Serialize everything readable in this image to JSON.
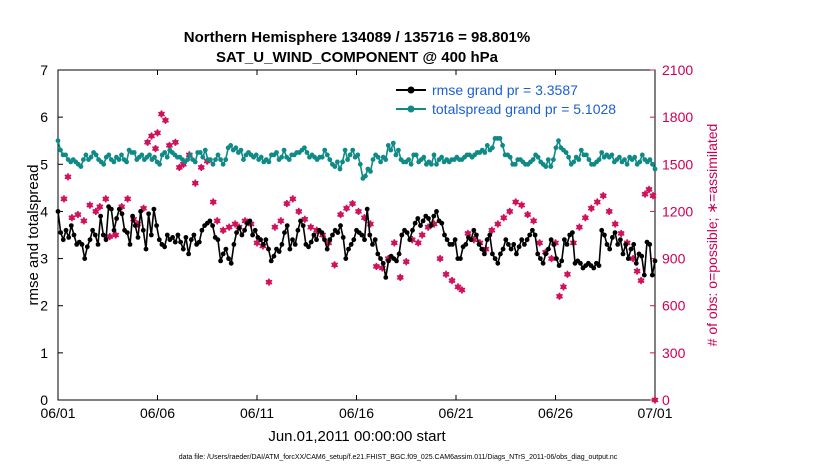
{
  "chart_data": {
    "type": "line",
    "title": "Northern Hemisphere 134089 / 135716 = 98.801%",
    "subtitle": "SAT_U_WIND_COMPONENT @ 400 hPa",
    "xlabel": "Jun.01,2011 00:00:00 start",
    "ylabel": "rmse and totalspread",
    "ylabel_right": "# of obs: o=possible; ∗=assimilated",
    "x_ticks": [
      "06/01",
      "06/06",
      "06/11",
      "06/16",
      "06/21",
      "06/26",
      "07/01"
    ],
    "xlim": [
      0,
      30
    ],
    "ylim": [
      0,
      7
    ],
    "y_ticks": [
      "0",
      "1",
      "2",
      "3",
      "4",
      "5",
      "6",
      "7"
    ],
    "ylim_right": [
      0,
      2100
    ],
    "y_ticks_right": [
      "0",
      "300",
      "600",
      "900",
      "1200",
      "1500",
      "1800",
      "2100"
    ],
    "legend": [
      "rmse grand pr = 3.3587",
      "totalspread grand pr = 5.1028"
    ],
    "footer": "data file: /Users/raeder/DAI/ATM_forcXX/CAM6_setup/f.e21.FHIST_BGC.f09_025.CAM6assim.011/Diags_NTrS_2011-06/obs_diag_output.nc",
    "colors": {
      "rmse": "#000000",
      "spread": "#0f8a87",
      "obs": "#d0105a",
      "legend_text": "#1a5fd6"
    },
    "series": [
      {
        "name": "rmse",
        "values": [
          4.0,
          3.55,
          3.4,
          3.6,
          3.45,
          3.7,
          3.5,
          3.3,
          3.35,
          3.3,
          3.0,
          3.25,
          3.4,
          3.6,
          3.5,
          3.3,
          3.9,
          3.5,
          3.4,
          4.1,
          4.05,
          3.6,
          3.85,
          4.05,
          3.95,
          3.6,
          3.55,
          3.3,
          3.9,
          3.7,
          3.45,
          4.0,
          3.6,
          3.2,
          3.95,
          3.5,
          4.05,
          3.7,
          3.4,
          3.3,
          3.25,
          3.5,
          3.4,
          3.45,
          3.35,
          3.5,
          3.35,
          3.2,
          3.45,
          3.1,
          3.4,
          3.5,
          3.3,
          3.35,
          3.6,
          3.7,
          3.75,
          3.8,
          3.7,
          3.45,
          3.4,
          2.95,
          3.1,
          3.2,
          3.0,
          2.9,
          3.3,
          3.55,
          3.65,
          3.5,
          3.6,
          3.75,
          3.8,
          3.5,
          3.6,
          3.45,
          3.4,
          3.3,
          3.4,
          3.2,
          2.95,
          3.05,
          3.2,
          3.15,
          3.3,
          3.55,
          3.7,
          3.2,
          3.4,
          3.3,
          3.6,
          3.8,
          3.7,
          3.3,
          3.25,
          3.35,
          3.5,
          3.4,
          3.6,
          3.55,
          3.4,
          3.2,
          3.4,
          3.5,
          3.6,
          3.55,
          3.7,
          3.45,
          3.0,
          3.2,
          3.3,
          3.4,
          3.6,
          3.55,
          3.5,
          3.4,
          4.05,
          3.5,
          3.3,
          3.4,
          3.1,
          3.0,
          2.9,
          2.6,
          2.95,
          3.05,
          3.0,
          2.95,
          3.1,
          3.5,
          3.6,
          3.55,
          3.4,
          3.6,
          3.75,
          3.85,
          3.7,
          3.8,
          3.9,
          3.85,
          3.7,
          3.9,
          4.0,
          3.8,
          3.75,
          3.5,
          3.4,
          3.3,
          3.3,
          3.4,
          3.0,
          3.0,
          3.25,
          3.3,
          3.45,
          3.4,
          3.6,
          3.5,
          3.3,
          3.2,
          3.1,
          3.4,
          3.5,
          3.1,
          3.0,
          2.9,
          3.1,
          3.2,
          3.4,
          3.3,
          3.2,
          3.3,
          3.1,
          3.25,
          3.4,
          3.3,
          3.4,
          3.5,
          3.6,
          3.5,
          3.1,
          3.0,
          2.9,
          3.1,
          3.2,
          3.4,
          3.3,
          3.0,
          2.85,
          2.95,
          3.4,
          3.3,
          3.5,
          3.55,
          2.9,
          2.95,
          2.9,
          2.8,
          2.85,
          2.9,
          2.85,
          2.8,
          2.9,
          2.85,
          3.6,
          3.5,
          3.3,
          3.2,
          3.45,
          3.55,
          3.3,
          3.4,
          3.1,
          3.3,
          3.0,
          3.2,
          3.3,
          2.9,
          3.1,
          3.05,
          2.65,
          3.35,
          3.3,
          2.65,
          2.95
        ],
        "x_start": 0,
        "x_end": 30
      },
      {
        "name": "totalspread",
        "values": [
          5.5,
          5.3,
          5.2,
          5.2,
          5.1,
          5.05,
          5.1,
          5.05,
          5.0,
          4.95,
          5.1,
          5.2,
          5.1,
          5.15,
          5.25,
          5.2,
          5.1,
          5.05,
          5.0,
          5.15,
          5.2,
          5.1,
          5.05,
          5.15,
          5.1,
          5.2,
          5.1,
          5.05,
          5.3,
          5.25,
          5.25,
          5.1,
          5.15,
          5.2,
          5.1,
          5.15,
          5.2,
          5.1,
          5.15,
          5.05,
          5.0,
          5.2,
          5.25,
          5.15,
          5.3,
          5.25,
          5.2,
          5.15,
          5.15,
          5.1,
          5.05,
          5.1,
          5.2,
          5.1,
          5.05,
          5.25,
          5.25,
          5.15,
          5.3,
          5.1,
          5.1,
          5.0,
          5.1,
          5.2,
          5.1,
          5.0,
          5.1,
          5.35,
          5.4,
          5.3,
          5.35,
          5.25,
          5.3,
          5.1,
          5.2,
          5.25,
          5.2,
          5.15,
          5.2,
          5.1,
          5.15,
          5.05,
          5.1,
          5.05,
          5.2,
          5.2,
          5.25,
          5.1,
          5.15,
          5.3,
          5.15,
          5.1,
          5.2,
          5.2,
          5.25,
          5.25,
          5.3,
          5.35,
          5.25,
          5.15,
          5.2,
          5.15,
          5.1,
          5.15,
          5.15,
          5.3,
          5.2,
          5.1,
          5.0,
          4.95,
          5.05,
          4.9,
          5.05,
          5.3,
          5.1,
          5.2,
          5.3,
          5.15,
          5.2,
          5.0,
          4.7,
          4.75,
          4.9,
          4.85,
          5.1,
          5.2,
          5.15,
          5.05,
          5.15,
          5.1,
          5.4,
          5.3,
          5.45,
          5.2,
          5.3,
          5.1,
          5.05,
          5.05,
          5.1,
          5.0,
          5.2,
          5.2,
          5.05,
          5.1,
          5.15,
          5.0,
          5.05,
          5.0,
          5.2,
          5.0,
          5.1,
          5.15,
          5.05,
          5.1,
          5.05,
          5.1,
          5.1,
          5.15,
          5.1,
          5.1,
          5.15,
          5.2,
          5.2,
          5.15,
          5.2,
          5.25,
          5.25,
          5.3,
          5.25,
          5.4,
          5.3,
          5.35,
          5.55,
          5.55,
          5.55,
          5.4,
          5.2,
          5.2,
          5.15,
          5.0,
          5.0,
          5.1,
          5.1,
          5.05,
          5.0,
          5.0,
          5.05,
          5.1,
          5.2,
          5.15,
          5.05,
          5.0,
          4.95,
          5.1,
          4.95,
          5.1,
          5.35,
          5.5,
          5.35,
          5.3,
          5.25,
          5.15,
          5.0,
          5.05,
          5.15,
          5.1,
          5.3,
          5.2,
          5.2,
          5.1,
          5.0,
          5.0,
          5.05,
          5.1,
          5.25,
          5.15,
          5.2,
          5.15,
          5.2,
          5.05,
          5.1,
          5.15,
          5.05,
          5.1,
          5.0,
          5.15,
          5.1,
          5.15,
          5.0,
          5.05,
          5.2,
          5.1,
          5.05,
          5.1,
          5.0,
          4.9
        ],
        "x_start": 0,
        "x_end": 30
      }
    ],
    "obs_counts": {
      "name": "assimilated observations (right axis)",
      "points": [
        [
          0.3,
          1280
        ],
        [
          0.5,
          1420
        ],
        [
          0.7,
          1160
        ],
        [
          1.0,
          1180
        ],
        [
          1.3,
          1140
        ],
        [
          1.6,
          1240
        ],
        [
          1.9,
          1200
        ],
        [
          2.1,
          1230
        ],
        [
          2.4,
          1280
        ],
        [
          2.6,
          1040
        ],
        [
          2.9,
          1050
        ],
        [
          3.2,
          1230
        ],
        [
          3.5,
          1280
        ],
        [
          3.8,
          1150
        ],
        [
          4.0,
          1120
        ],
        [
          4.3,
          1220
        ],
        [
          4.5,
          1640
        ],
        [
          4.7,
          1680
        ],
        [
          4.9,
          1600
        ],
        [
          5.0,
          1700
        ],
        [
          5.2,
          1820
        ],
        [
          5.4,
          1780
        ],
        [
          5.6,
          1620
        ],
        [
          5.9,
          1640
        ],
        [
          6.1,
          1480
        ],
        [
          6.3,
          1500
        ],
        [
          6.6,
          1560
        ],
        [
          6.9,
          1380
        ],
        [
          7.2,
          1480
        ],
        [
          7.5,
          1520
        ],
        [
          7.8,
          1260
        ],
        [
          8.0,
          1140
        ],
        [
          8.3,
          1080
        ],
        [
          8.6,
          1100
        ],
        [
          8.9,
          1120
        ],
        [
          9.1,
          1100
        ],
        [
          9.4,
          1140
        ],
        [
          9.7,
          1120
        ],
        [
          10.0,
          1000
        ],
        [
          10.3,
          980
        ],
        [
          10.6,
          750
        ],
        [
          10.9,
          1100
        ],
        [
          11.2,
          1140
        ],
        [
          11.5,
          1250
        ],
        [
          11.8,
          1280
        ],
        [
          12.1,
          1200
        ],
        [
          12.4,
          1150
        ],
        [
          12.7,
          1100
        ],
        [
          13.0,
          1080
        ],
        [
          13.3,
          1050
        ],
        [
          13.6,
          1000
        ],
        [
          13.9,
          860
        ],
        [
          14.2,
          1180
        ],
        [
          14.5,
          1220
        ],
        [
          14.8,
          1250
        ],
        [
          15.1,
          1200
        ],
        [
          15.4,
          1160
        ],
        [
          15.7,
          1120
        ],
        [
          16.0,
          850
        ],
        [
          16.3,
          840
        ],
        [
          16.6,
          900
        ],
        [
          16.9,
          1000
        ],
        [
          17.2,
          780
        ],
        [
          17.5,
          880
        ],
        [
          17.8,
          1020
        ],
        [
          18.1,
          1000
        ],
        [
          18.3,
          1050
        ],
        [
          18.6,
          1100
        ],
        [
          18.9,
          1120
        ],
        [
          19.2,
          900
        ],
        [
          19.5,
          800
        ],
        [
          19.8,
          760
        ],
        [
          20.1,
          720
        ],
        [
          20.3,
          700
        ],
        [
          20.6,
          1060
        ],
        [
          20.9,
          1020
        ],
        [
          21.2,
          1000
        ],
        [
          21.5,
          960
        ],
        [
          21.8,
          1080
        ],
        [
          22.1,
          1120
        ],
        [
          22.4,
          1160
        ],
        [
          22.7,
          1200
        ],
        [
          23.0,
          1260
        ],
        [
          23.3,
          1240
        ],
        [
          23.6,
          1180
        ],
        [
          23.9,
          1140
        ],
        [
          24.2,
          1000
        ],
        [
          24.5,
          940
        ],
        [
          24.8,
          900
        ],
        [
          25.0,
          1000
        ],
        [
          25.2,
          660
        ],
        [
          25.4,
          720
        ],
        [
          25.6,
          800
        ],
        [
          25.9,
          1000
        ],
        [
          26.2,
          1100
        ],
        [
          26.5,
          1160
        ],
        [
          26.8,
          1220
        ],
        [
          27.1,
          1260
        ],
        [
          27.4,
          1300
        ],
        [
          27.7,
          1200
        ],
        [
          28.0,
          1120
        ],
        [
          28.3,
          1060
        ],
        [
          28.6,
          1000
        ],
        [
          28.9,
          900
        ],
        [
          29.1,
          820
        ],
        [
          29.3,
          760
        ],
        [
          29.5,
          1310
        ],
        [
          29.7,
          1340
        ],
        [
          29.9,
          1300
        ],
        [
          30.0,
          0
        ]
      ]
    }
  }
}
